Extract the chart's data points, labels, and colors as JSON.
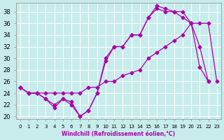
{
  "xlabel": "Windchill (Refroidissement éolien,°C)",
  "background_color": "#c8ecec",
  "line_color": "#aa00aa",
  "xlim_min": -0.5,
  "xlim_max": 23.5,
  "ylim_min": 19.5,
  "ylim_max": 39.5,
  "xticks": [
    0,
    1,
    2,
    3,
    4,
    5,
    6,
    7,
    8,
    9,
    10,
    11,
    12,
    13,
    14,
    15,
    16,
    17,
    18,
    19,
    20,
    21,
    22,
    23
  ],
  "yticks": [
    20,
    22,
    24,
    26,
    28,
    30,
    32,
    34,
    36,
    38
  ],
  "line_flat_x": [
    0,
    1,
    2,
    3,
    4,
    5,
    6,
    7,
    8,
    9,
    10,
    11,
    12,
    13,
    14,
    15,
    16,
    17,
    18,
    19,
    20,
    21,
    22,
    23
  ],
  "line_flat_y": [
    25,
    24,
    24,
    24,
    24,
    24,
    24,
    24,
    25,
    25,
    26,
    26,
    27,
    27.5,
    28,
    30,
    31,
    32,
    33,
    34,
    36,
    36,
    36,
    26
  ],
  "line_dip1_x": [
    0,
    1,
    2,
    3,
    4,
    5,
    6,
    7,
    8,
    9,
    10,
    11,
    12,
    13,
    14,
    15,
    16,
    17,
    18,
    19,
    20,
    21,
    22
  ],
  "line_dip1_y": [
    25,
    24,
    24,
    23,
    22,
    23,
    22,
    20,
    21,
    24,
    30,
    32,
    32,
    34,
    34,
    37,
    38.5,
    38,
    38,
    37,
    36,
    32,
    26
  ],
  "line_dip2_x": [
    0,
    1,
    2,
    3,
    4,
    5,
    6,
    7,
    8,
    9,
    10,
    11,
    12,
    13,
    14,
    15,
    16,
    17,
    18,
    19,
    20,
    21,
    22
  ],
  "line_dip2_y": [
    25,
    24,
    24,
    23,
    21.5,
    23,
    22.5,
    20,
    21,
    24,
    29.5,
    32,
    32,
    34,
    34,
    37,
    39,
    38.5,
    38,
    38,
    36,
    28.5,
    26
  ]
}
